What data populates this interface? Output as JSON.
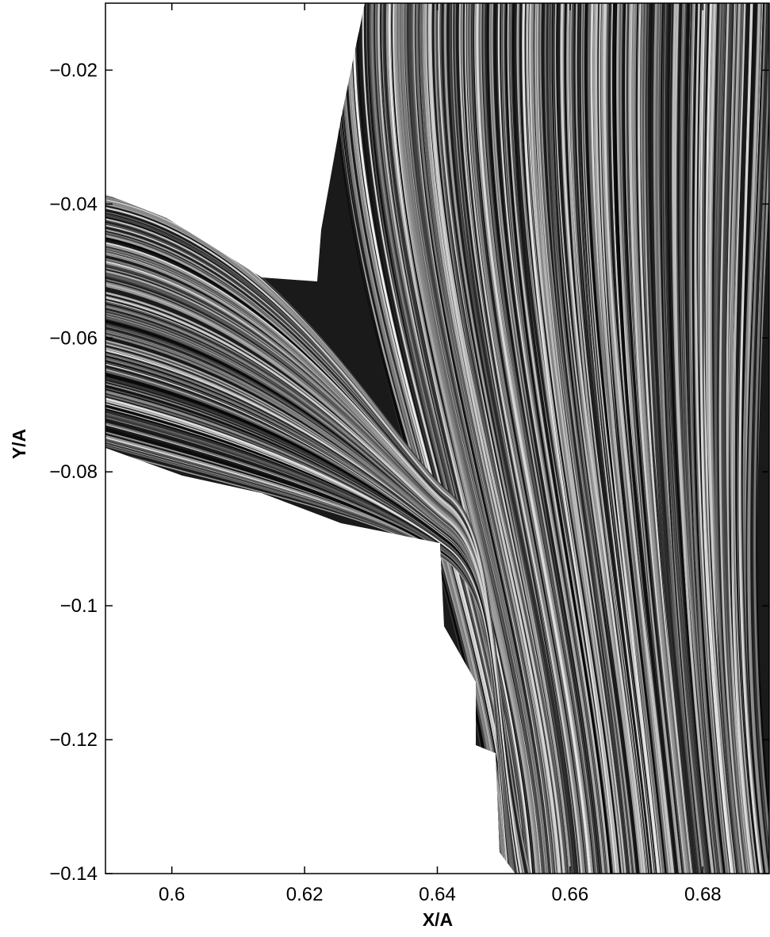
{
  "chart_data": {
    "type": "image",
    "xlabel": "X/A",
    "ylabel": "Y/A",
    "xlim": [
      0.59,
      0.69
    ],
    "ylim": [
      -0.14,
      -0.01
    ],
    "xticks": [
      0.6,
      0.62,
      0.64,
      0.66,
      0.68
    ],
    "yticks": [
      {
        "value": -0.14,
        "label": "−0.14"
      },
      {
        "value": -0.12,
        "label": "−0.12"
      },
      {
        "value": -0.1,
        "label": "−0.1"
      },
      {
        "value": -0.08,
        "label": "−0.08"
      },
      {
        "value": -0.06,
        "label": "−0.06"
      },
      {
        "value": -0.04,
        "label": "−0.04"
      },
      {
        "value": -0.02,
        "label": "−0.02"
      }
    ]
  }
}
